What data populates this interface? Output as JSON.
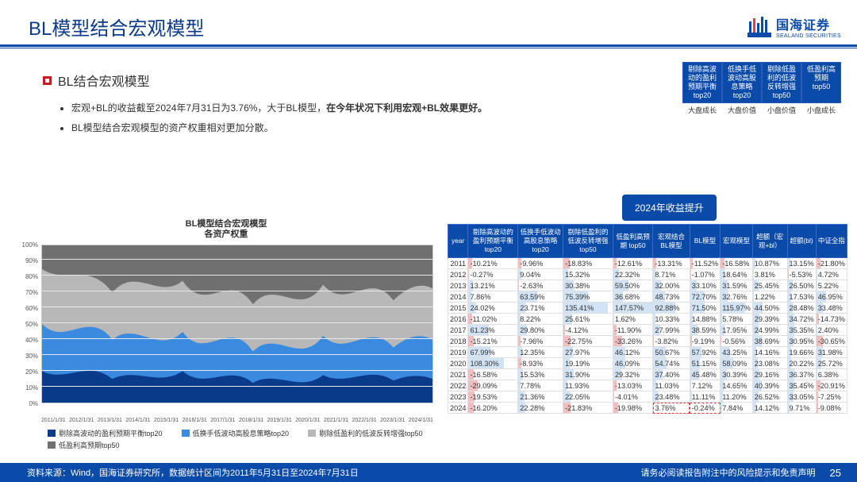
{
  "header": {
    "title": "BL模型结合宏观模型",
    "logo_zh": "国海证券",
    "logo_en": "SEALAND SECURITIES"
  },
  "badges": {
    "top": [
      "剔除高波动的盈利预期平衡 top20",
      "低换手低波动高股息策略 top20",
      "剔除低盈利的低波反转增强 top50",
      "低盈利高预期 top50"
    ],
    "labels": [
      "大盘成长",
      "大盘价值",
      "小盘价值",
      "小盘成长"
    ]
  },
  "section_heading": "BL结合宏观模型",
  "bullets": [
    {
      "plain": "宏观+BL的收益截至2024年7月31日为3.76%，大于BL模型，",
      "bold": "在今年状况下利用宏观+BL效果更好。"
    },
    {
      "plain": "BL模型结合宏观模型的资产权重相对更加分散。",
      "bold": ""
    }
  ],
  "return_button": "2024年收益提升",
  "chart": {
    "title_l1": "BL模型结合宏观模型",
    "title_l2": "各资产权重",
    "type": "stacked-area",
    "y_ticks": [
      "0%",
      "10%",
      "20%",
      "30%",
      "40%",
      "50%",
      "60%",
      "70%",
      "80%",
      "90%",
      "100%"
    ],
    "x_ticks": [
      "2011/1/31",
      "2012/1/31",
      "2013/1/31",
      "2014/1/31",
      "2015/1/31",
      "2016/1/31",
      "2017/1/31",
      "2018/1/31",
      "2019/1/31",
      "2020/1/31",
      "2021/1/31",
      "2022/1/31",
      "2023/1/31",
      "2024/1/31"
    ],
    "legend": [
      {
        "name": "剔除高波动的盈利预期平衡top20",
        "color": "#0a3a8a"
      },
      {
        "name": "低换手低波动高股息策略top20",
        "color": "#3a8ae0"
      },
      {
        "name": "剔除低盈利的低波反转增强top50",
        "color": "#b8b8b8"
      },
      {
        "name": "低盈利高预期top50",
        "color": "#707070"
      }
    ],
    "colors": {
      "series1": "#0a3a8a",
      "series2": "#3a8ae0",
      "series3": "#b8b8b8",
      "series4": "#707070",
      "grid": "#e8e8e8",
      "axis": "#cccccc"
    }
  },
  "table": {
    "columns": [
      "year",
      "剔除高波动的盈利预期平衡 top20",
      "低换手低波动高股息策略 top20",
      "剔除低盈利的低波反转增强 top50",
      "低盈利高预期 top50",
      "宏观结合 BL模型",
      "BL模型",
      "宏观模型",
      "超额（宏观+bl）",
      "超额(bl)",
      "中证全指"
    ],
    "rows": [
      [
        "2011",
        "-10.21%",
        "-9.96%",
        "-18.83%",
        "-12.61%",
        "-13.31%",
        "-11.52%",
        "-16.58%",
        "10.87%",
        "13.15%",
        "-21.80%"
      ],
      [
        "2012",
        "-0.27%",
        "9.04%",
        "15.32%",
        "22.32%",
        "8.71%",
        "-1.07%",
        "18.64%",
        "3.81%",
        "-5.53%",
        "4.72%"
      ],
      [
        "2013",
        "13.21%",
        "-2.63%",
        "30.38%",
        "59.50%",
        "32.00%",
        "33.10%",
        "31.59%",
        "25.45%",
        "26.50%",
        "5.22%"
      ],
      [
        "2014",
        "7.86%",
        "63.59%",
        "75.39%",
        "36.68%",
        "48.73%",
        "72.70%",
        "32.76%",
        "1.22%",
        "17.53%",
        "46.95%"
      ],
      [
        "2015",
        "24.02%",
        "23.71%",
        "135.41%",
        "147.57%",
        "92.88%",
        "71.50%",
        "115.97%",
        "44.50%",
        "28.48%",
        "33.48%"
      ],
      [
        "2016",
        "-11.02%",
        "8.22%",
        "25.61%",
        "1.62%",
        "10.33%",
        "14.88%",
        "5.78%",
        "29.39%",
        "34.72%",
        "-14.73%"
      ],
      [
        "2017",
        "61.23%",
        "29.80%",
        "-4.12%",
        "-11.90%",
        "27.99%",
        "38.59%",
        "17.95%",
        "24.99%",
        "35.35%",
        "2.40%"
      ],
      [
        "2018",
        "-15.21%",
        "-7.96%",
        "-22.75%",
        "-33.26%",
        "-3.82%",
        "-9.19%",
        "-0.56%",
        "38.69%",
        "30.95%",
        "-30.65%"
      ],
      [
        "2019",
        "67.99%",
        "12.35%",
        "27.97%",
        "46.12%",
        "50.67%",
        "57.92%",
        "43.25%",
        "14.16%",
        "19.66%",
        "31.98%"
      ],
      [
        "2020",
        "108.30%",
        "-8.93%",
        "19.19%",
        "46.09%",
        "54.74%",
        "51.15%",
        "58.09%",
        "23.08%",
        "20.22%",
        "25.72%"
      ],
      [
        "2021",
        "-16.58%",
        "15.53%",
        "31.90%",
        "29.32%",
        "37.40%",
        "45.48%",
        "30.39%",
        "29.16%",
        "36.37%",
        "6.38%"
      ],
      [
        "2022",
        "-29.09%",
        "7.78%",
        "11.93%",
        "-13.03%",
        "11.03%",
        "7.12%",
        "14.65%",
        "40.39%",
        "35.45%",
        "-20.91%"
      ],
      [
        "2023",
        "-19.53%",
        "21.36%",
        "22.05%",
        "-4.01%",
        "23.48%",
        "11.11%",
        "11.20%",
        "26.52%",
        "33.05%",
        "-7.25%"
      ],
      [
        "2024",
        "-16.20%",
        "22.28%",
        "-21.83%",
        "-19.98%",
        "3.76%",
        "-0.24%",
        "7.84%",
        "14.12%",
        "9.71%",
        "-9.08%"
      ]
    ],
    "highlight_row": 13,
    "highlight_cols": [
      5,
      6
    ],
    "colors": {
      "header_bg": "#0a4aa8",
      "header_fg": "#ffffff",
      "border": "#e0e0e0",
      "neg_fill": "rgba(200,0,0,0.25)",
      "pos_fill": "rgba(0,100,200,0.18)"
    }
  },
  "footer": {
    "source": "资料来源：Wind，国海证券研究所，数据统计区间为2011年5月31日至2024年7月31日",
    "disclaimer": "请务必阅读报告附注中的风险提示和免责声明",
    "page": "25"
  }
}
